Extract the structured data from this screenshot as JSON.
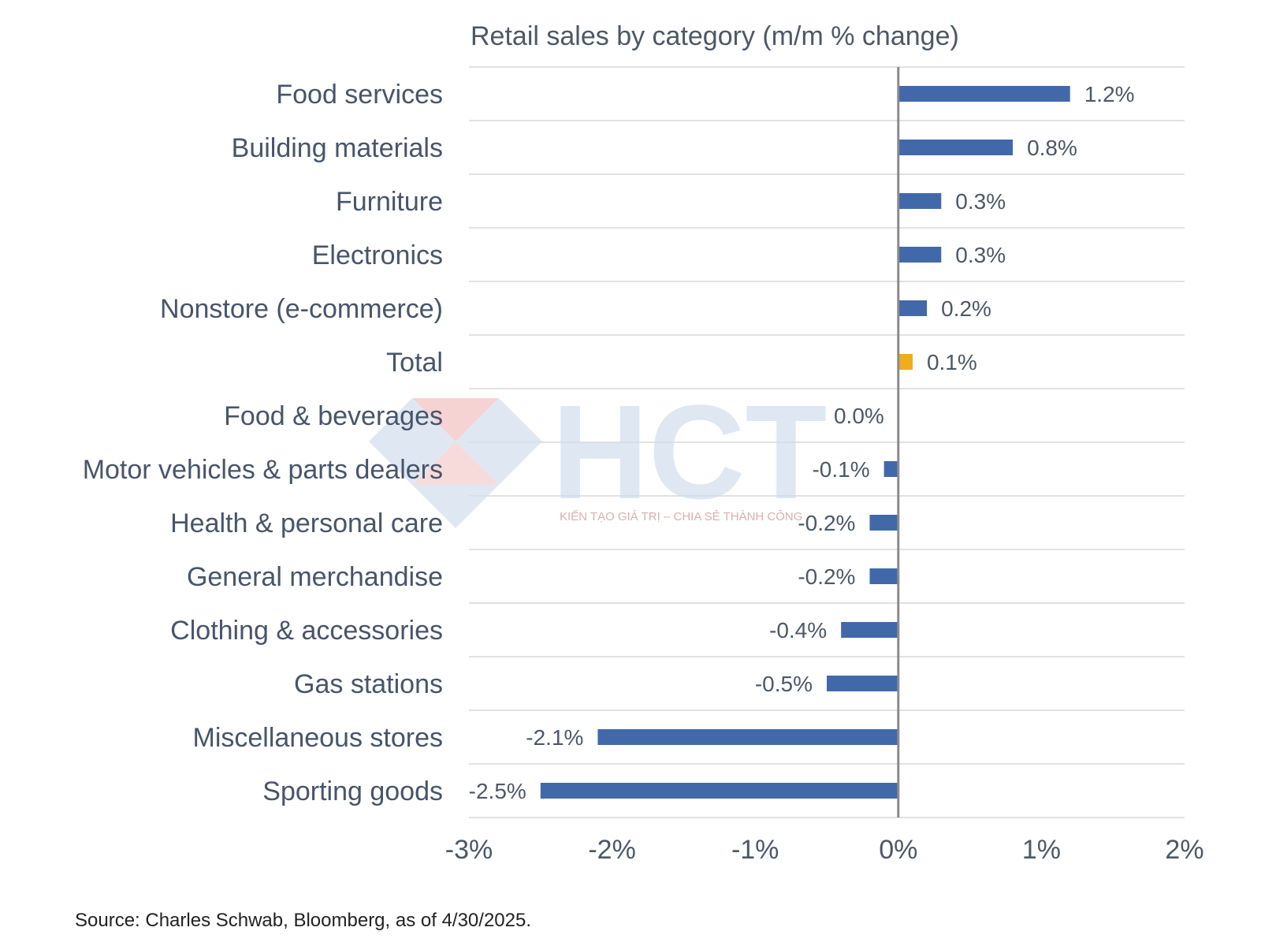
{
  "chart_data": {
    "type": "bar",
    "orientation": "horizontal",
    "title": "Retail sales by category (m/m % change)",
    "categories": [
      "Food services",
      "Building materials",
      "Furniture",
      "Electronics",
      "Nonstore (e-commerce)",
      "Total",
      "Food & beverages",
      "Motor vehicles & parts dealers",
      "Health & personal care",
      "General merchandise",
      "Clothing & accessories",
      "Gas stations",
      "Miscellaneous stores",
      "Sporting goods"
    ],
    "values": [
      1.2,
      0.8,
      0.3,
      0.3,
      0.2,
      0.1,
      0.0,
      -0.1,
      -0.2,
      -0.2,
      -0.4,
      -0.5,
      -2.1,
      -2.5
    ],
    "value_labels": [
      "1.2%",
      "0.8%",
      "0.3%",
      "0.3%",
      "0.2%",
      "0.1%",
      "0.0%",
      "-0.1%",
      "-0.2%",
      "-0.2%",
      "-0.4%",
      "-0.5%",
      "-2.1%",
      "-2.5%"
    ],
    "xlim": [
      -3,
      2
    ],
    "x_ticks": [
      -3,
      -2,
      -1,
      0,
      1,
      2
    ],
    "x_tick_labels": [
      "-3%",
      "-2%",
      "-1%",
      "0%",
      "1%",
      "2%"
    ],
    "xlabel": "",
    "ylabel": "",
    "grid": "horizontal row separators",
    "colors": {
      "bar": "#4169aa",
      "highlight": "#f0ac1e",
      "highlight_category": "Total",
      "zero_line": "#8a8a8a",
      "grid": "#d8d8d8"
    }
  },
  "source_note": "Source: Charles Schwab, Bloomberg, as of 4/30/2025.",
  "watermark": {
    "logo_text": "HCT",
    "tagline": "KIẾN TẠO GIÁ TRỊ – CHIA SẺ THÀNH CÔNG"
  }
}
